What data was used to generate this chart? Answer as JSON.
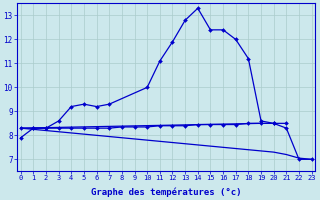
{
  "xlabel": "Graphe des températures (°c)",
  "bg_color": "#cce8ec",
  "grid_color": "#aacccc",
  "line_color": "#0000cc",
  "ylim": [
    6.5,
    13.5
  ],
  "yticks": [
    7,
    8,
    9,
    10,
    11,
    12,
    13
  ],
  "xlim": [
    -0.3,
    23.3
  ],
  "dpi": 100,
  "figsize": [
    3.2,
    2.0
  ],
  "curve_main": {
    "x": [
      0,
      1,
      2,
      3,
      4,
      5,
      6,
      7,
      10,
      11,
      12,
      13,
      14,
      15,
      16,
      17,
      18,
      19,
      20,
      21,
      22,
      23
    ],
    "y": [
      7.9,
      8.3,
      8.3,
      8.6,
      9.2,
      9.3,
      9.2,
      9.3,
      10.0,
      11.1,
      11.9,
      12.8,
      13.3,
      12.4,
      12.4,
      12.0,
      11.2,
      8.6,
      8.5,
      8.3,
      7.0,
      7.0
    ]
  },
  "curve_flat": {
    "x": [
      0,
      1,
      2,
      3,
      4,
      5,
      6,
      7,
      8,
      9,
      10,
      11,
      12,
      13,
      14,
      15,
      16,
      17,
      18,
      19,
      20,
      21,
      22,
      23
    ],
    "y": [
      8.3,
      8.3,
      8.3,
      8.3,
      8.3,
      8.3,
      8.3,
      8.3,
      8.35,
      8.35,
      8.35,
      8.4,
      8.4,
      8.4,
      8.45,
      8.45,
      8.45,
      8.45,
      8.5,
      8.5,
      8.5,
      8.5,
      null,
      null
    ]
  },
  "curve_diag": {
    "x": [
      0,
      1,
      2,
      3,
      4,
      5,
      6,
      7,
      8,
      9,
      10,
      11,
      12,
      13,
      14,
      15,
      16,
      17,
      18,
      19,
      20,
      21,
      22,
      23
    ],
    "y": [
      8.3,
      8.25,
      8.2,
      8.15,
      8.1,
      8.05,
      8.0,
      7.95,
      7.9,
      7.85,
      7.8,
      7.75,
      7.7,
      7.65,
      7.6,
      7.55,
      7.5,
      7.45,
      7.4,
      7.35,
      7.3,
      7.2,
      7.05,
      7.0
    ]
  },
  "curve_tri_base": {
    "x": [
      0,
      19
    ],
    "y": [
      8.3,
      8.5
    ]
  }
}
